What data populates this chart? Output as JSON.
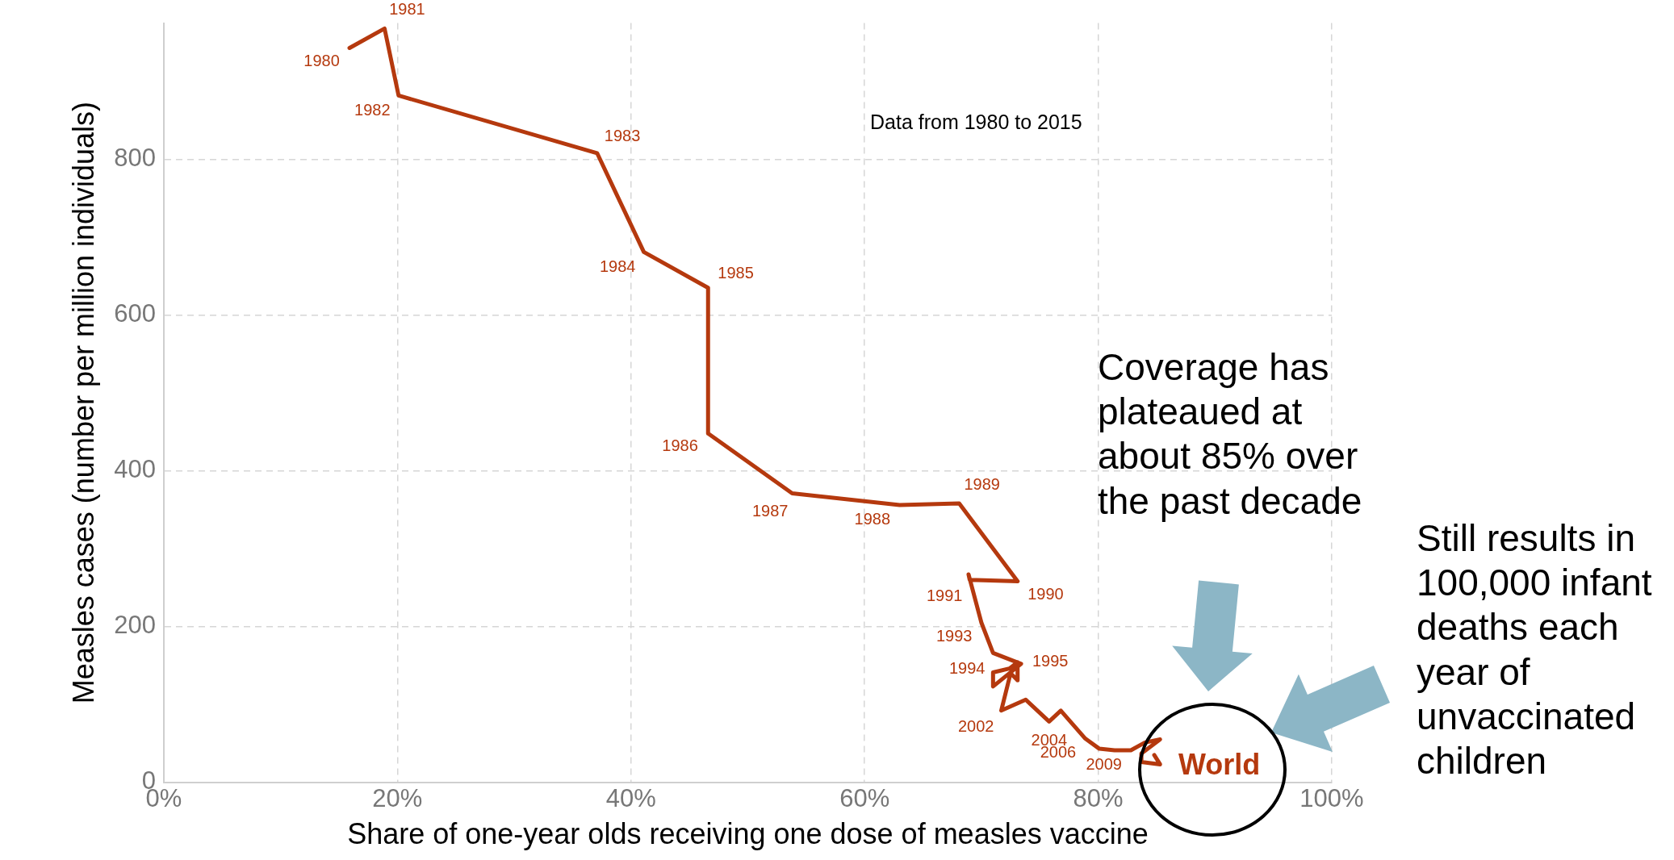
{
  "chart_data": {
    "type": "line",
    "xlabel": "Share of one-year olds receiving one dose of measles vaccine",
    "ylabel": "Measles cases (number per million individuals)",
    "annotations": [
      "Data from 1980 to 2015",
      "Coverage has plateaued at about 85% over the past decade",
      "Still results in 100,000 infant deaths each year of unvaccinated children",
      {
        "text": "1980",
        "x": 15.9,
        "y": 943
      },
      {
        "text": "1981",
        "x": 18.9,
        "y": 968
      },
      {
        "text": "1982",
        "x": 20.1,
        "y": 882
      },
      {
        "text": "1983",
        "x": 37.1,
        "y": 808
      },
      {
        "text": "1984",
        "x": 41.1,
        "y": 681
      },
      {
        "text": "1985",
        "x": 46.6,
        "y": 635
      },
      {
        "text": "1986",
        "x": 46.6,
        "y": 448
      },
      {
        "text": "1987",
        "x": 53.8,
        "y": 371
      },
      {
        "text": "1988",
        "x": 63.0,
        "y": 356
      },
      {
        "text": "1989",
        "x": 68.1,
        "y": 358
      },
      {
        "text": "1990",
        "x": 73.1,
        "y": 258
      },
      {
        "text": "1991",
        "x": 69.0,
        "y": 260
      },
      {
        "text": "1993",
        "x": 70.0,
        "y": 205
      },
      {
        "text": "1994",
        "x": 71.0,
        "y": 166
      },
      {
        "text": "1995",
        "x": 73.4,
        "y": 152
      },
      {
        "text": "2002",
        "x": 71.7,
        "y": 92
      },
      {
        "text": "2004",
        "x": 75.8,
        "y": 78
      },
      {
        "text": "2006",
        "x": 78.9,
        "y": 56
      },
      {
        "text": "2009",
        "x": 82.8,
        "y": 41
      }
    ],
    "series": [
      {
        "name": "World",
        "color": "#b5390e",
        "x": [
          15.9,
          18.9,
          20.1,
          37.1,
          41.1,
          46.6,
          46.6,
          53.8,
          63.0,
          68.1,
          73.1,
          69.0,
          68.9,
          70.0,
          71.0,
          73.4,
          71.0,
          71.0,
          72.4,
          73.1,
          73.1,
          72.5,
          71.7,
          73.8,
          75.8,
          76.8,
          78.9,
          80.1,
          81.4,
          82.8,
          84.0,
          85.3,
          83.7,
          83.7,
          85.3,
          84.8
        ],
        "values": [
          943,
          968,
          882,
          808,
          681,
          635,
          448,
          371,
          356,
          358,
          258,
          260,
          267,
          205,
          166,
          152,
          123,
          141,
          146,
          154,
          131,
          140,
          92,
          106,
          78,
          92,
          56,
          43,
          41,
          41,
          51,
          55,
          37,
          26,
          23,
          35
        ]
      }
    ],
    "xlim": [
      0,
      100
    ],
    "xticks": [
      {
        "value": 0,
        "label": "0%"
      },
      {
        "value": 20,
        "label": "20%"
      },
      {
        "value": 40,
        "label": "40%"
      },
      {
        "value": 60,
        "label": "60%"
      },
      {
        "value": 80,
        "label": "80%"
      },
      {
        "value": 100,
        "label": "100%"
      }
    ],
    "ylim": [
      0,
      975
    ],
    "yticks": [
      0,
      200,
      400,
      600,
      800
    ],
    "grid": true,
    "legend": false,
    "line_style": "solid"
  }
}
